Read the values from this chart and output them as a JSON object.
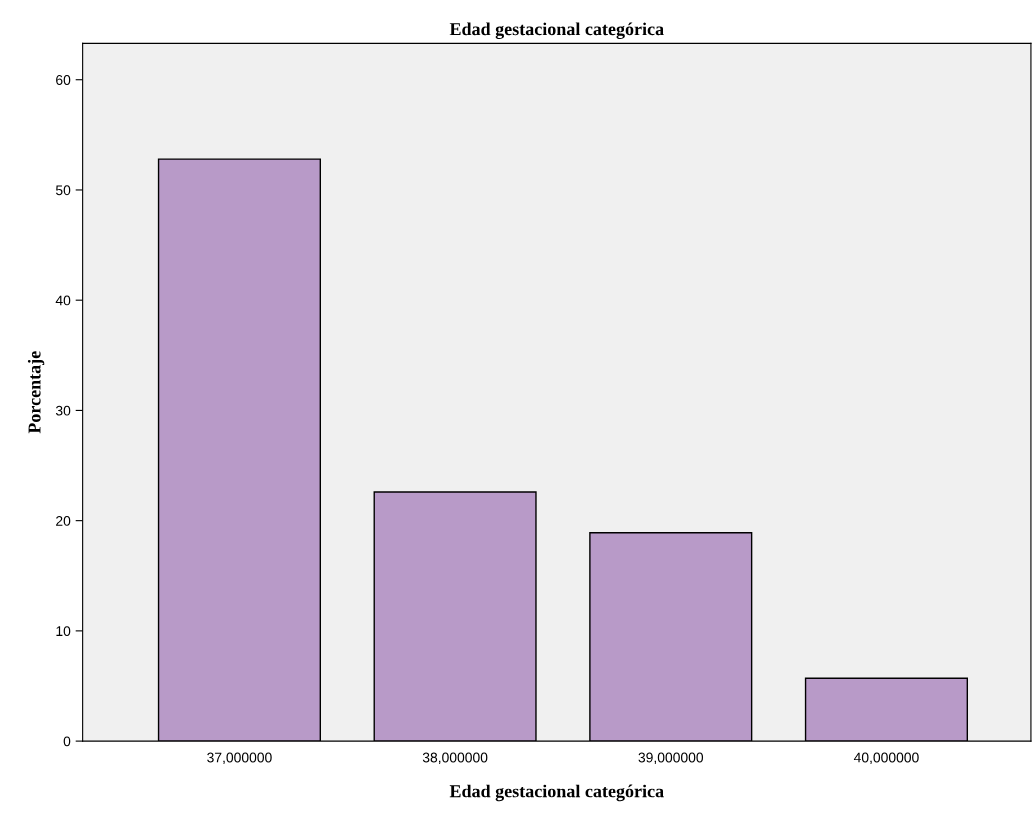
{
  "chart_data": {
    "type": "bar",
    "title": "Edad gestacional categórica",
    "xlabel": "Edad gestacional categórica",
    "ylabel": "Porcentaje",
    "categories": [
      "37,000000",
      "38,000000",
      "39,000000",
      "40,000000"
    ],
    "values": [
      52.8,
      22.6,
      18.9,
      5.7
    ],
    "color": "#b89ac8",
    "ylim": [
      0,
      63.3
    ],
    "yticks": [
      0,
      10,
      20,
      30,
      40,
      50,
      60
    ],
    "grid": false,
    "legend": false
  }
}
